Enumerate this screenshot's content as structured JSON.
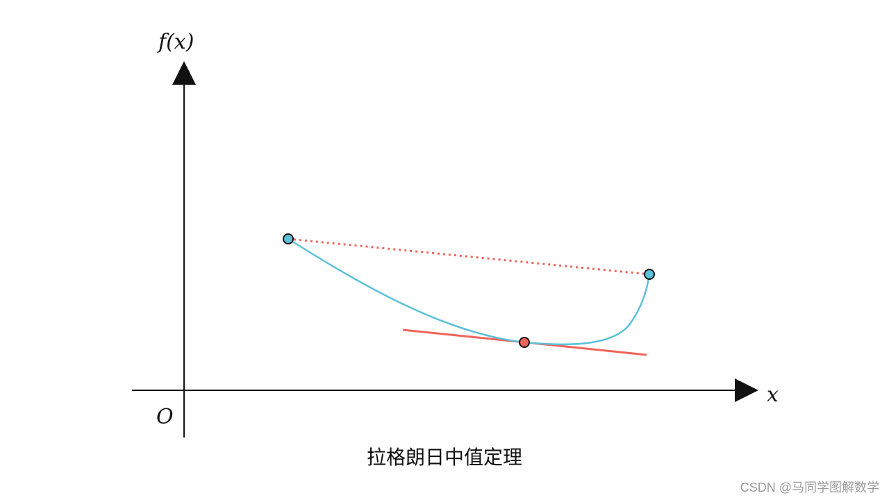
{
  "labels": {
    "y_axis": "f(x)",
    "x_axis": "x",
    "origin": "O"
  },
  "caption": "拉格朗日中值定理",
  "watermark": "CSDN @马同学图解数学",
  "colors": {
    "curve": "#5bc0d8",
    "secant": "#f0645a",
    "tangent": "#f0645a",
    "endpoint_fill": "#5bc0d8",
    "tangent_point_fill": "#f0645a",
    "axes": "#111111"
  }
}
